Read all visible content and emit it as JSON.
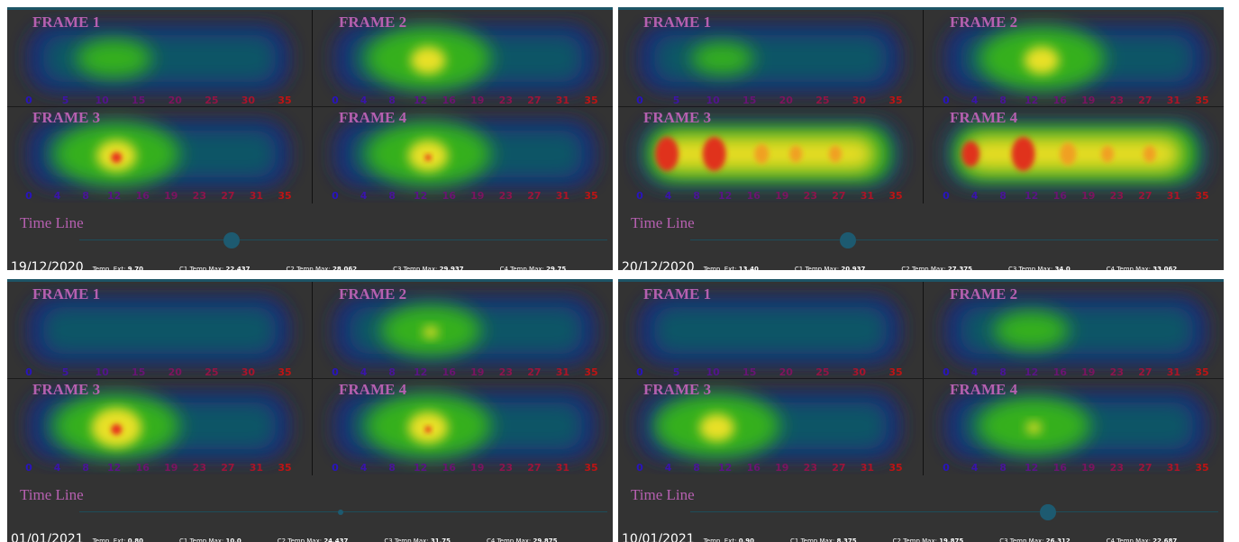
{
  "panels": [
    {
      "frames": [
        {
          "label": "FRAME 1",
          "ticks": [
            "0",
            "5",
            "10",
            "15",
            "20",
            "25",
            "30",
            "35"
          ]
        },
        {
          "label": "FRAME 2",
          "ticks": [
            "0",
            "4",
            "8",
            "12",
            "16",
            "19",
            "23",
            "27",
            "31",
            "35"
          ]
        },
        {
          "label": "FRAME 3",
          "ticks": [
            "0",
            "4",
            "8",
            "12",
            "16",
            "19",
            "23",
            "27",
            "31",
            "35"
          ]
        },
        {
          "label": "FRAME 4",
          "ticks": [
            "0",
            "4",
            "8",
            "12",
            "16",
            "19",
            "23",
            "27",
            "31",
            "35"
          ]
        }
      ],
      "timeline_label": "Time Line",
      "date": "19/12/2020",
      "readings": [
        {
          "label": "Temp. Ext:",
          "value": "9.70"
        },
        {
          "label": "C1 Temp Max:",
          "value": "22.437"
        },
        {
          "label": "C2 Temp Max:",
          "value": "28.062"
        },
        {
          "label": "C3 Temp Max:",
          "value": "29.937"
        },
        {
          "label": "C4 Temp Max:",
          "value": "29.75"
        }
      ]
    },
    {
      "frames": [
        {
          "label": "FRAME 1",
          "ticks": [
            "0",
            "5",
            "10",
            "15",
            "20",
            "25",
            "30",
            "35"
          ]
        },
        {
          "label": "FRAME 2",
          "ticks": [
            "0",
            "4",
            "8",
            "12",
            "16",
            "19",
            "23",
            "27",
            "31",
            "35"
          ]
        },
        {
          "label": "FRAME 3",
          "ticks": [
            "0",
            "4",
            "8",
            "12",
            "16",
            "19",
            "23",
            "27",
            "31",
            "35"
          ]
        },
        {
          "label": "FRAME 4",
          "ticks": [
            "0",
            "4",
            "8",
            "12",
            "16",
            "19",
            "23",
            "27",
            "31",
            "35"
          ]
        }
      ],
      "timeline_label": "Time Line",
      "date": "20/12/2020",
      "readings": [
        {
          "label": "Temp. Ext:",
          "value": "13.40"
        },
        {
          "label": "C1 Temp Max:",
          "value": "20.937"
        },
        {
          "label": "C2 Temp Max:",
          "value": "27.375"
        },
        {
          "label": "C3 Temp Max:",
          "value": "34.0"
        },
        {
          "label": "C4 Temp Max:",
          "value": "33.062"
        }
      ]
    },
    {
      "frames": [
        {
          "label": "FRAME 1",
          "ticks": [
            "0",
            "5",
            "10",
            "15",
            "20",
            "25",
            "30",
            "35"
          ]
        },
        {
          "label": "FRAME 2",
          "ticks": [
            "0",
            "4",
            "8",
            "12",
            "16",
            "19",
            "23",
            "27",
            "31",
            "35"
          ]
        },
        {
          "label": "FRAME 3",
          "ticks": [
            "0",
            "4",
            "8",
            "12",
            "16",
            "19",
            "23",
            "27",
            "31",
            "35"
          ]
        },
        {
          "label": "FRAME 4",
          "ticks": [
            "0",
            "4",
            "8",
            "12",
            "16",
            "19",
            "23",
            "27",
            "31",
            "35"
          ]
        }
      ],
      "timeline_label": "Time Line",
      "date": "01/01/2021",
      "readings": [
        {
          "label": "Temp. Ext:",
          "value": "0.80"
        },
        {
          "label": "C1 Temp Max:",
          "value": "10.0"
        },
        {
          "label": "C2 Temp Max:",
          "value": "24.437"
        },
        {
          "label": "C3 Temp Max:",
          "value": "31.75"
        },
        {
          "label": "C4 Temp Max:",
          "value": "29.875"
        }
      ]
    },
    {
      "frames": [
        {
          "label": "FRAME 1",
          "ticks": [
            "0",
            "5",
            "10",
            "15",
            "20",
            "25",
            "30",
            "35"
          ]
        },
        {
          "label": "FRAME 2",
          "ticks": [
            "0",
            "4",
            "8",
            "12",
            "16",
            "19",
            "23",
            "27",
            "31",
            "35"
          ]
        },
        {
          "label": "FRAME 3",
          "ticks": [
            "0",
            "4",
            "8",
            "12",
            "16",
            "19",
            "23",
            "27",
            "31",
            "35"
          ]
        },
        {
          "label": "FRAME 4",
          "ticks": [
            "0",
            "4",
            "8",
            "12",
            "16",
            "19",
            "23",
            "27",
            "31",
            "35"
          ]
        }
      ],
      "timeline_label": "Time Line",
      "date": "10/01/2021",
      "readings": [
        {
          "label": "Temp. Ext:",
          "value": "0.90"
        },
        {
          "label": "C1 Temp Max:",
          "value": "8.375"
        },
        {
          "label": "C2 Temp Max:",
          "value": "19.875"
        },
        {
          "label": "C3 Temp Max:",
          "value": "26.312"
        },
        {
          "label": "C4 Temp Max:",
          "value": "22.687"
        }
      ]
    }
  ]
}
